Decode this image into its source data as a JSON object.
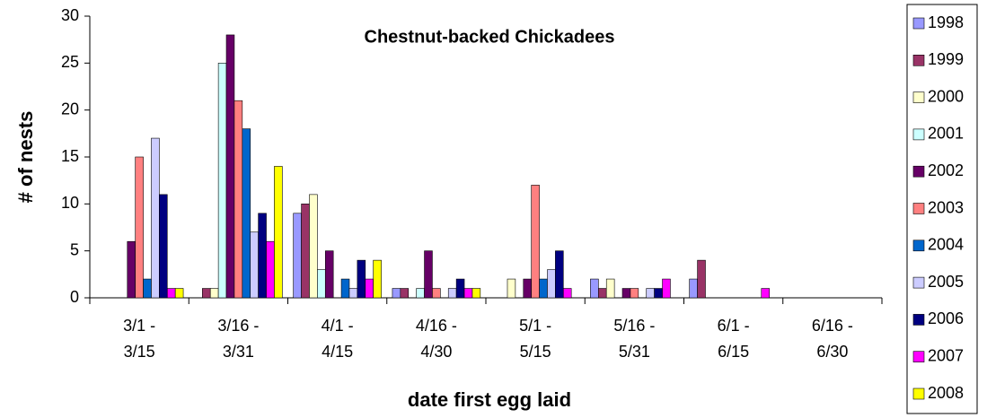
{
  "chart_data": {
    "type": "bar",
    "title": "Chestnut-backed Chickadees",
    "x_label": "date first egg laid",
    "y_label": "# of nests",
    "categories": [
      "3/1 - 3/15",
      "3/16 - 3/31",
      "4/1 - 4/15",
      "4/16 - 4/30",
      "5/1 - 5/15",
      "5/16 - 5/31",
      "6/1 - 6/15",
      "6/16 - 6/30"
    ],
    "series": [
      {
        "name": "1998",
        "color": "#9999ff",
        "values": [
          0,
          0,
          9,
          1,
          0,
          2,
          2,
          0
        ]
      },
      {
        "name": "1999",
        "color": "#993366",
        "values": [
          0,
          1,
          10,
          1,
          0,
          1,
          4,
          0
        ]
      },
      {
        "name": "2000",
        "color": "#ffffcc",
        "values": [
          0,
          1,
          11,
          0,
          2,
          2,
          0,
          0
        ]
      },
      {
        "name": "2001",
        "color": "#ccffff",
        "values": [
          0,
          25,
          3,
          1,
          0,
          0,
          0,
          0
        ]
      },
      {
        "name": "2002",
        "color": "#660066",
        "values": [
          6,
          28,
          5,
          5,
          2,
          1,
          0,
          0
        ]
      },
      {
        "name": "2003",
        "color": "#ff8080",
        "values": [
          15,
          21,
          0,
          1,
          12,
          1,
          0,
          0
        ]
      },
      {
        "name": "2004",
        "color": "#0066cc",
        "values": [
          2,
          18,
          2,
          0,
          2,
          0,
          0,
          0
        ]
      },
      {
        "name": "2005",
        "color": "#ccccff",
        "values": [
          17,
          7,
          1,
          1,
          3,
          1,
          0,
          0
        ]
      },
      {
        "name": "2006",
        "color": "#000080",
        "values": [
          11,
          9,
          4,
          2,
          5,
          1,
          0,
          0
        ]
      },
      {
        "name": "2007",
        "color": "#ff00ff",
        "values": [
          1,
          6,
          2,
          1,
          1,
          2,
          1,
          0
        ]
      },
      {
        "name": "2008",
        "color": "#ffff00",
        "values": [
          1,
          14,
          4,
          1,
          0,
          0,
          0,
          0
        ]
      }
    ],
    "ylim": [
      0,
      30
    ],
    "yticks": [
      0,
      5,
      10,
      15,
      20,
      25,
      30
    ],
    "grid": false,
    "legend": "right"
  }
}
